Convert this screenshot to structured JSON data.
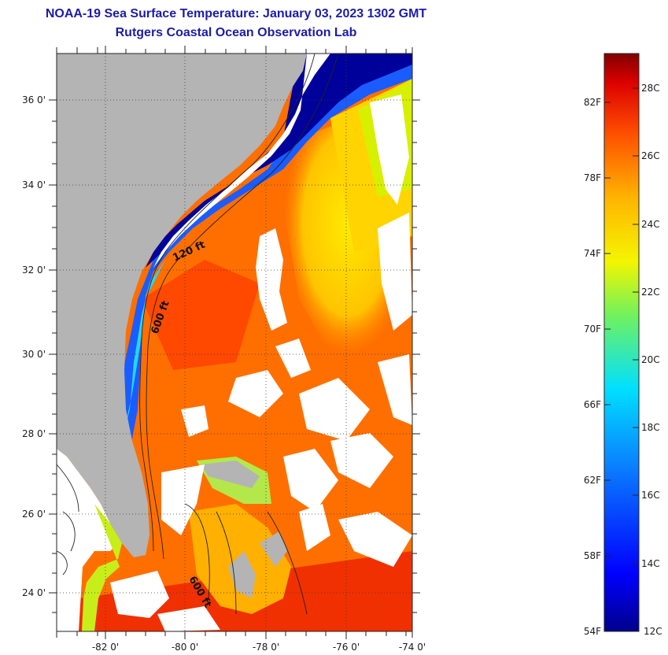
{
  "title": {
    "line1": "NOAA-19 Sea Surface Temperature:  January 03, 2023 1302 GMT",
    "line2": "Rutgers Coastal Ocean Observation Lab"
  },
  "map": {
    "lon_ticks": [
      "-82 0'",
      "-80 0'",
      "-78 0'",
      "-76 0'",
      "-74 0'"
    ],
    "lat_ticks": [
      "36 0'",
      "34 0'",
      "32 0'",
      "30 0'",
      "28 0'",
      "26 0'",
      "24 0'"
    ],
    "contour_labels": [
      "120 ft",
      "600 ft",
      "600 ft"
    ],
    "colors": {
      "land": "#b4b4b4",
      "cloud": "#ffffff",
      "warm": "#ff6a00",
      "hot": "#ee2a00",
      "mid": "#ffc800",
      "cool": "#1650ff",
      "cold": "#00008c"
    }
  },
  "colorbar": {
    "fahrenheit": [
      "82F",
      "78F",
      "74F",
      "70F",
      "66F",
      "62F",
      "58F",
      "54F"
    ],
    "celsius": [
      "28C",
      "26C",
      "24C",
      "22C",
      "20C",
      "18C",
      "16C",
      "14C",
      "12C"
    ],
    "min_c": 12,
    "max_c": 29
  }
}
